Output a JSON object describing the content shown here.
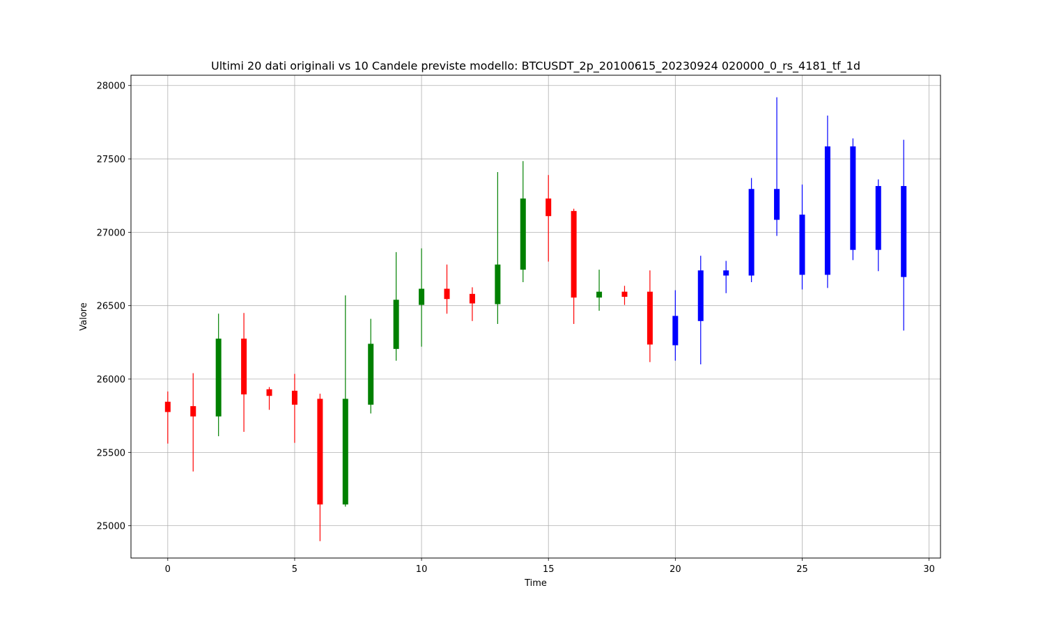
{
  "chart_data": {
    "type": "candlestick",
    "title": "Ultimi 20 dati originali vs 10 Candele previste modello: BTCUSDT_2p_20100615_20230924 020000_0_rs_4181_tf_1d",
    "xlabel": "Time",
    "ylabel": "Valore",
    "xlim": [
      -1.45,
      30.45
    ],
    "ylim": [
      24780,
      28070
    ],
    "xticks": [
      0,
      5,
      10,
      15,
      20,
      25,
      30
    ],
    "yticks": [
      25000,
      25500,
      26000,
      26500,
      27000,
      27500,
      28000
    ],
    "grid": true,
    "colors": {
      "up": "#008000",
      "down": "#ff0000",
      "predicted": "#0000ff"
    },
    "series": [
      {
        "name": "",
        "kind": "original",
        "candles": [
          {
            "t": 0,
            "open": 25845,
            "close": 25775,
            "high": 25915,
            "low": 25560
          },
          {
            "t": 1,
            "open": 25815,
            "close": 25745,
            "high": 26040,
            "low": 25370
          },
          {
            "t": 2,
            "open": 25745,
            "close": 26275,
            "high": 26445,
            "low": 25610
          },
          {
            "t": 3,
            "open": 26275,
            "close": 25895,
            "high": 26450,
            "low": 25640
          },
          {
            "t": 4,
            "open": 25930,
            "close": 25885,
            "high": 25945,
            "low": 25790
          },
          {
            "t": 5,
            "open": 25920,
            "close": 25825,
            "high": 26035,
            "low": 25565
          },
          {
            "t": 6,
            "open": 25865,
            "close": 25145,
            "high": 25900,
            "low": 24895
          },
          {
            "t": 7,
            "open": 25145,
            "close": 25865,
            "high": 26570,
            "low": 25130
          },
          {
            "t": 8,
            "open": 25825,
            "close": 26240,
            "high": 26410,
            "low": 25765
          },
          {
            "t": 9,
            "open": 26205,
            "close": 26540,
            "high": 26865,
            "low": 26125
          },
          {
            "t": 10,
            "open": 26505,
            "close": 26615,
            "high": 26890,
            "low": 26220
          },
          {
            "t": 11,
            "open": 26615,
            "close": 26545,
            "high": 26780,
            "low": 26445
          },
          {
            "t": 12,
            "open": 26580,
            "close": 26515,
            "high": 26625,
            "low": 26395
          },
          {
            "t": 13,
            "open": 26510,
            "close": 26780,
            "high": 27410,
            "low": 26375
          },
          {
            "t": 14,
            "open": 26745,
            "close": 27230,
            "high": 27485,
            "low": 26660
          },
          {
            "t": 15,
            "open": 27230,
            "close": 27110,
            "high": 27390,
            "low": 26800
          },
          {
            "t": 16,
            "open": 27145,
            "close": 26555,
            "high": 27160,
            "low": 26375
          },
          {
            "t": 17,
            "open": 26555,
            "close": 26595,
            "high": 26745,
            "low": 26465
          },
          {
            "t": 18,
            "open": 26595,
            "close": 26560,
            "high": 26635,
            "low": 26505
          },
          {
            "t": 19,
            "open": 26595,
            "close": 26235,
            "high": 26740,
            "low": 26115
          }
        ]
      },
      {
        "name": "",
        "kind": "predicted",
        "candles": [
          {
            "t": 20,
            "open": 26230,
            "close": 26430,
            "high": 26605,
            "low": 26125
          },
          {
            "t": 21,
            "open": 26395,
            "close": 26740,
            "high": 26840,
            "low": 26100
          },
          {
            "t": 22,
            "open": 26705,
            "close": 26740,
            "high": 26805,
            "low": 26585
          },
          {
            "t": 23,
            "open": 26705,
            "close": 27295,
            "high": 27370,
            "low": 26660
          },
          {
            "t": 24,
            "open": 27085,
            "close": 27295,
            "high": 27920,
            "low": 26975
          },
          {
            "t": 25,
            "open": 26710,
            "close": 27120,
            "high": 27325,
            "low": 26610
          },
          {
            "t": 26,
            "open": 26710,
            "close": 27585,
            "high": 27795,
            "low": 26620
          },
          {
            "t": 27,
            "open": 26880,
            "close": 27585,
            "high": 27640,
            "low": 26810
          },
          {
            "t": 28,
            "open": 26880,
            "close": 27315,
            "high": 27360,
            "low": 26735
          },
          {
            "t": 29,
            "open": 26695,
            "close": 27315,
            "high": 27630,
            "low": 26330
          }
        ]
      }
    ]
  }
}
